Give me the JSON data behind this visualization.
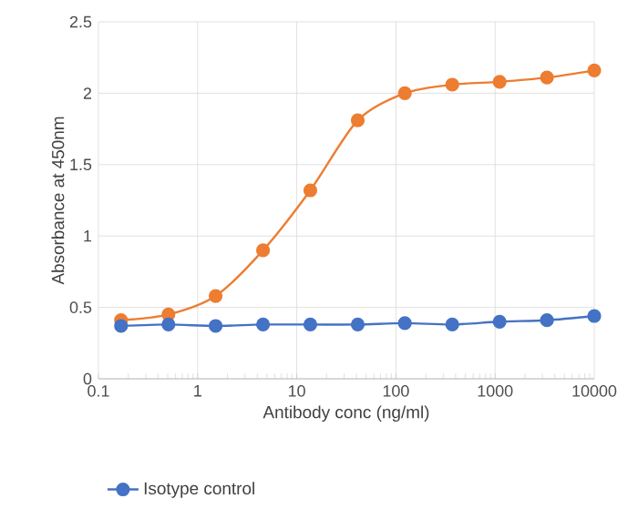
{
  "chart_data": {
    "type": "line",
    "xlabel": "Antibody conc (ng/ml)",
    "ylabel": "Absorbance at 450nm",
    "x": [
      0.169,
      0.508,
      1.52,
      4.57,
      13.7,
      41.2,
      123,
      370,
      1111,
      3333,
      10000
    ],
    "series": [
      {
        "color": "#ed7d31",
        "values": [
          0.41,
          0.45,
          0.58,
          0.9,
          1.32,
          1.81,
          2.0,
          2.06,
          2.08,
          2.11,
          2.16
        ]
      },
      {
        "name": "Isotype control",
        "color": "#4472c4",
        "values": [
          0.37,
          0.38,
          0.37,
          0.38,
          0.38,
          0.38,
          0.39,
          0.38,
          0.4,
          0.41,
          0.44
        ]
      }
    ],
    "log": "x",
    "xlim": [
      0.1,
      10000
    ],
    "xticks": [
      0.1,
      1,
      10,
      100,
      1000,
      10000
    ],
    "ylim": [
      0,
      2.5
    ],
    "yticks": [
      0,
      0.5,
      1,
      1.5,
      2,
      2.5
    ],
    "grid": true,
    "legend": "bottom",
    "marker": "circle",
    "line_style": "solid"
  }
}
